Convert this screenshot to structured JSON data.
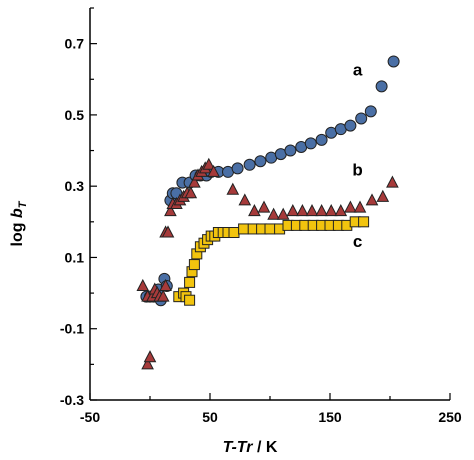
{
  "chart_data": {
    "type": "scatter",
    "xlabel_parts": [
      "T-Tr",
      " / K"
    ],
    "ylabel_parts": [
      "log ",
      "b",
      "T"
    ],
    "xlim": [
      -50,
      250
    ],
    "ylim": [
      -0.3,
      0.8
    ],
    "x_ticks": [
      -50,
      50,
      150,
      250
    ],
    "x_tick_labels": [
      "-50",
      "50",
      "150",
      "250"
    ],
    "y_ticks": [
      -0.3,
      -0.1,
      0.1,
      0.3,
      0.5,
      0.7
    ],
    "y_tick_labels": [
      "-0.3",
      "-0.1",
      "0.1",
      "0.3",
      "0.5",
      "0.7"
    ],
    "grid": false,
    "series": [
      {
        "name": "a",
        "marker": "circle",
        "color": "#4A6FA5",
        "points": [
          [
            -3,
            -0.01
          ],
          [
            0,
            -0.01
          ],
          [
            3,
            -0.01
          ],
          [
            5,
            0.0
          ],
          [
            7,
            0.01
          ],
          [
            9,
            -0.02
          ],
          [
            12,
            0.04
          ],
          [
            14,
            0.02
          ],
          [
            17,
            0.26
          ],
          [
            19,
            0.28
          ],
          [
            22,
            0.28
          ],
          [
            27,
            0.31
          ],
          [
            33,
            0.31
          ],
          [
            38,
            0.33
          ],
          [
            42,
            0.33
          ],
          [
            47,
            0.33
          ],
          [
            51,
            0.34
          ],
          [
            57,
            0.34
          ],
          [
            65,
            0.34
          ],
          [
            73,
            0.35
          ],
          [
            83,
            0.36
          ],
          [
            92,
            0.37
          ],
          [
            101,
            0.38
          ],
          [
            109,
            0.39
          ],
          [
            117,
            0.4
          ],
          [
            126,
            0.41
          ],
          [
            134,
            0.42
          ],
          [
            143,
            0.43
          ],
          [
            151,
            0.45
          ],
          [
            159,
            0.46
          ],
          [
            167,
            0.47
          ],
          [
            176,
            0.49
          ],
          [
            184,
            0.51
          ],
          [
            193,
            0.58
          ],
          [
            203,
            0.65
          ]
        ]
      },
      {
        "name": "b",
        "marker": "triangle",
        "color": "#A63A3A",
        "points": [
          [
            -6,
            0.02
          ],
          [
            -2,
            -0.01
          ],
          [
            2,
            -0.01
          ],
          [
            4,
            0.01
          ],
          [
            6,
            0.0
          ],
          [
            8,
            -0.01
          ],
          [
            11,
            -0.01
          ],
          [
            13,
            0.02
          ],
          [
            -2,
            -0.2
          ],
          [
            0,
            -0.18
          ],
          [
            13,
            0.17
          ],
          [
            15,
            0.17
          ],
          [
            17,
            0.23
          ],
          [
            19,
            0.25
          ],
          [
            22,
            0.25
          ],
          [
            25,
            0.26
          ],
          [
            28,
            0.27
          ],
          [
            31,
            0.28
          ],
          [
            34,
            0.28
          ],
          [
            37,
            0.31
          ],
          [
            40,
            0.33
          ],
          [
            43,
            0.34
          ],
          [
            46,
            0.35
          ],
          [
            49,
            0.36
          ],
          [
            53,
            0.34
          ],
          [
            69,
            0.29
          ],
          [
            79,
            0.26
          ],
          [
            87,
            0.23
          ],
          [
            95,
            0.24
          ],
          [
            103,
            0.22
          ],
          [
            111,
            0.22
          ],
          [
            119,
            0.23
          ],
          [
            127,
            0.23
          ],
          [
            135,
            0.23
          ],
          [
            143,
            0.23
          ],
          [
            151,
            0.23
          ],
          [
            159,
            0.23
          ],
          [
            167,
            0.24
          ],
          [
            175,
            0.24
          ],
          [
            185,
            0.26
          ],
          [
            194,
            0.27
          ],
          [
            202,
            0.31
          ]
        ]
      },
      {
        "name": "c",
        "marker": "square",
        "color": "#F2C40E",
        "points": [
          [
            24,
            -0.01
          ],
          [
            28,
            0.0
          ],
          [
            30,
            -0.01
          ],
          [
            33,
            -0.02
          ],
          [
            33,
            0.03
          ],
          [
            35,
            0.06
          ],
          [
            37,
            0.08
          ],
          [
            39,
            0.11
          ],
          [
            42,
            0.13
          ],
          [
            45,
            0.14
          ],
          [
            48,
            0.15
          ],
          [
            51,
            0.16
          ],
          [
            54,
            0.16
          ],
          [
            57,
            0.17
          ],
          [
            61,
            0.17
          ],
          [
            65,
            0.17
          ],
          [
            70,
            0.17
          ],
          [
            78,
            0.18
          ],
          [
            86,
            0.18
          ],
          [
            93,
            0.18
          ],
          [
            100,
            0.18
          ],
          [
            108,
            0.18
          ],
          [
            115,
            0.19
          ],
          [
            122,
            0.19
          ],
          [
            129,
            0.19
          ],
          [
            136,
            0.19
          ],
          [
            143,
            0.19
          ],
          [
            150,
            0.19
          ],
          [
            157,
            0.19
          ],
          [
            164,
            0.19
          ],
          [
            171,
            0.2
          ],
          [
            178,
            0.2
          ]
        ]
      }
    ],
    "annotations": [
      {
        "text": "a",
        "x": 173,
        "y": 0.61
      },
      {
        "text": "b",
        "x": 173,
        "y": 0.33
      },
      {
        "text": "c",
        "x": 173,
        "y": 0.13
      }
    ]
  }
}
